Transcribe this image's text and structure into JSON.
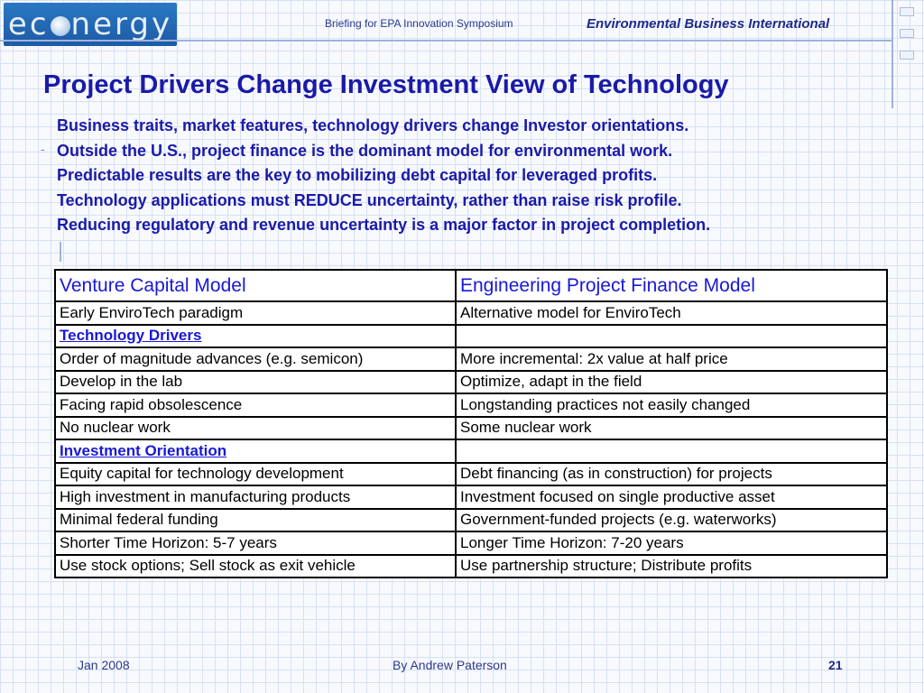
{
  "header": {
    "logo_text_before": "ec",
    "logo_text_after": "nergy",
    "briefing": "Briefing for EPA Innovation Symposium",
    "organization": "Environmental Business International"
  },
  "slide": {
    "title": "Project Drivers Change Investment View of Technology",
    "bullets": [
      "Business traits, market features, technology drivers change Investor orientations.",
      "Outside the U.S., project finance is the dominant model for environmental work.",
      "Predictable results are the key to mobilizing debt capital for leveraged profits.",
      "Technology applications must REDUCE uncertainty, rather than raise risk profile.",
      "Reducing regulatory and revenue uncertainty is a major factor in project completion."
    ],
    "side_mark": "-"
  },
  "table": {
    "headers": [
      "Venture Capital Model",
      "Engineering Project Finance Model"
    ],
    "rows": [
      [
        "Early EnviroTech paradigm",
        "Alternative model for EnviroTech"
      ],
      [
        "Technology Drivers",
        ""
      ],
      [
        "Order of magnitude advances (e.g. semicon)",
        "More incremental: 2x value at half price"
      ],
      [
        "Develop in the lab",
        "Optimize, adapt in the field"
      ],
      [
        "Facing rapid obsolescence",
        "Longstanding practices not easily changed"
      ],
      [
        "No nuclear work",
        "Some nuclear work"
      ],
      [
        "Investment Orientation",
        ""
      ],
      [
        "Equity capital for technology development",
        "Debt financing (as in construction) for projects"
      ],
      [
        "High investment in manufacturing products",
        "Investment focused on single productive asset"
      ],
      [
        "Minimal federal funding",
        "Government-funded projects (e.g. waterworks)"
      ],
      [
        "Shorter Time Horizon: 5-7 years",
        "Longer Time Horizon: 7-20 years"
      ],
      [
        "Use stock options; Sell stock as exit vehicle",
        "Use partnership structure; Distribute profits"
      ]
    ]
  },
  "footer": {
    "date": "Jan 2008",
    "author": "By Andrew Paterson",
    "page": "21"
  }
}
